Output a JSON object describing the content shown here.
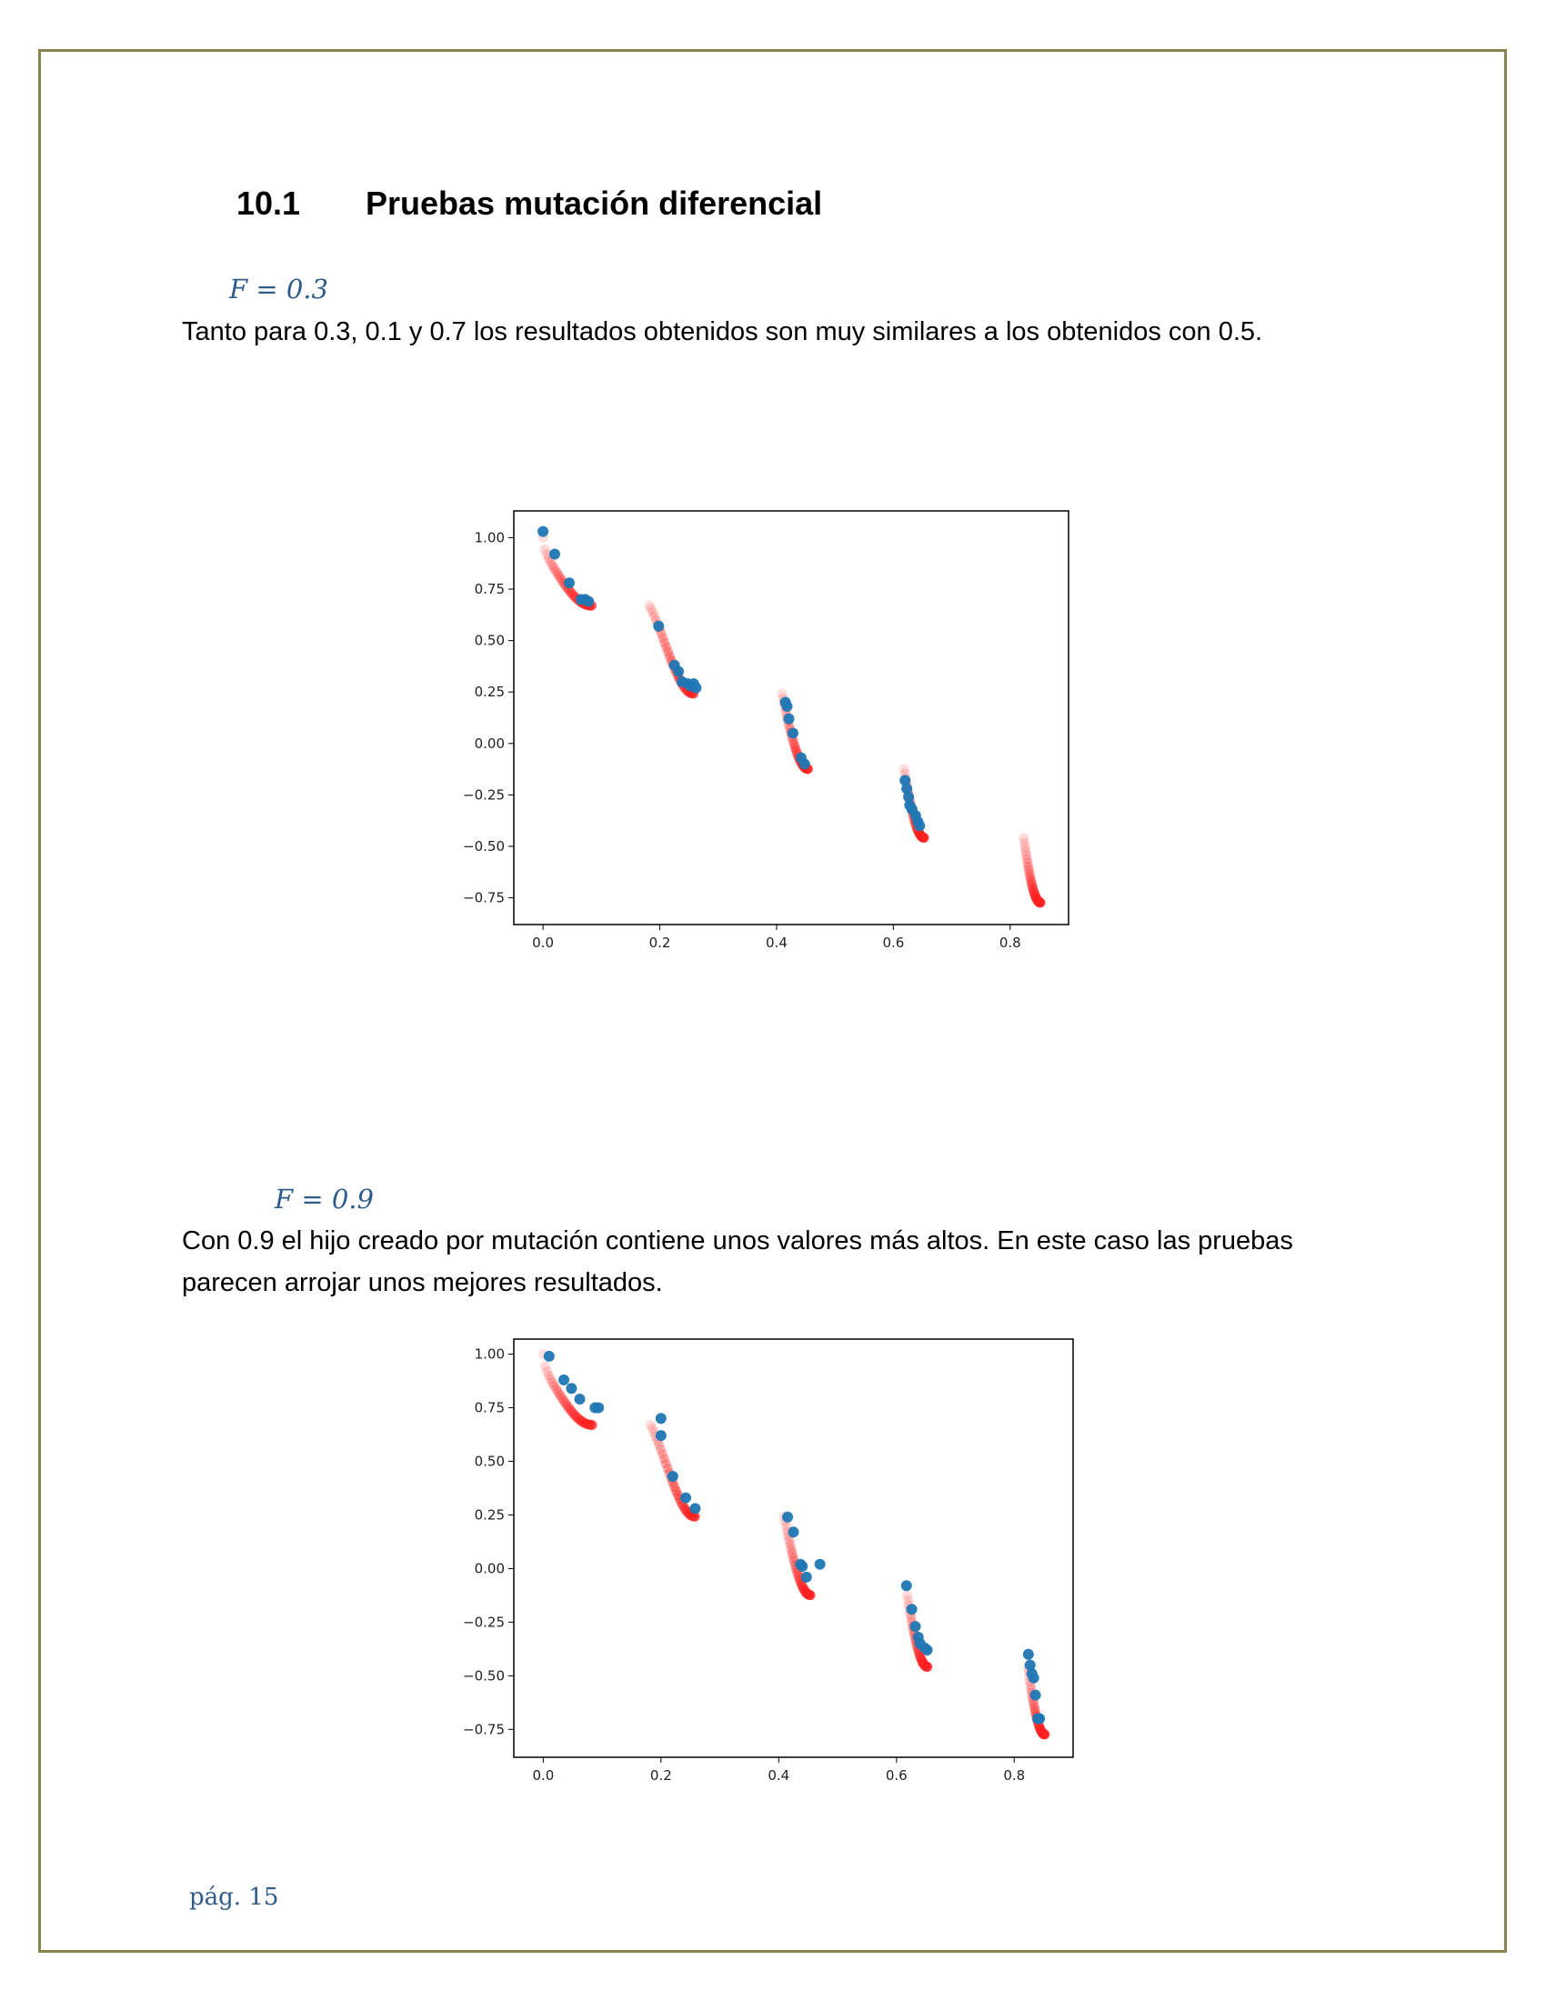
{
  "section": {
    "number": "10.1",
    "title": "Pruebas mutación diferencial"
  },
  "block1": {
    "subheading": "F = 0.3",
    "text": "Tanto para 0.3, 0.1 y 0.7 los resultados obtenidos son muy similares a los obtenidos con 0.5."
  },
  "block2": {
    "subheading": "F = 0.9",
    "line1": "Con 0.9 el hijo creado por mutación contiene unos valores más altos. En este caso las pruebas",
    "line2": "parecen arrojar unos mejores resultados."
  },
  "page_label": "pág. 15",
  "colors": {
    "frame": "#8a8350",
    "accent": "#2e5c8a",
    "front": "#ff2020",
    "solution": "#1f77b4"
  },
  "chart_data": [
    {
      "type": "scatter",
      "title": "",
      "xlabel": "",
      "ylabel": "",
      "xlim": [
        -0.05,
        0.9
      ],
      "ylim": [
        -0.88,
        1.13
      ],
      "xticks": [
        "0.0",
        "0.2",
        "0.4",
        "0.6",
        "0.8"
      ],
      "yticks": [
        "1.00",
        "0.75",
        "0.50",
        "0.25",
        "0.00",
        "−0.25",
        "−0.50",
        "−0.75"
      ],
      "series": [
        {
          "style": "front",
          "segments": [
            [
              0.0,
              0.083
            ],
            [
              0.1822,
              0.2577
            ],
            [
              0.4093,
              0.4538
            ],
            [
              0.6184,
              0.6525
            ],
            [
              0.8234,
              0.8518
            ]
          ]
        },
        {
          "style": "solution",
          "points": [
            [
              0.0,
              1.03
            ],
            [
              0.02,
              0.92
            ],
            [
              0.045,
              0.78
            ],
            [
              0.065,
              0.7
            ],
            [
              0.072,
              0.7
            ],
            [
              0.078,
              0.69
            ],
            [
              0.198,
              0.57
            ],
            [
              0.225,
              0.38
            ],
            [
              0.232,
              0.35
            ],
            [
              0.238,
              0.3
            ],
            [
              0.248,
              0.29
            ],
            [
              0.252,
              0.28
            ],
            [
              0.258,
              0.29
            ],
            [
              0.262,
              0.27
            ],
            [
              0.415,
              0.2
            ],
            [
              0.418,
              0.18
            ],
            [
              0.421,
              0.12
            ],
            [
              0.428,
              0.05
            ],
            [
              0.442,
              -0.07
            ],
            [
              0.448,
              -0.1
            ],
            [
              0.62,
              -0.18
            ],
            [
              0.623,
              -0.22
            ],
            [
              0.626,
              -0.26
            ],
            [
              0.628,
              -0.3
            ],
            [
              0.632,
              -0.32
            ],
            [
              0.638,
              -0.35
            ],
            [
              0.642,
              -0.38
            ],
            [
              0.645,
              -0.4
            ]
          ]
        }
      ]
    },
    {
      "type": "scatter",
      "title": "",
      "xlabel": "",
      "ylabel": "",
      "xlim": [
        -0.05,
        0.9
      ],
      "ylim": [
        -0.88,
        1.07
      ],
      "xticks": [
        "0.0",
        "0.2",
        "0.4",
        "0.6",
        "0.8"
      ],
      "yticks": [
        "1.00",
        "0.75",
        "0.50",
        "0.25",
        "0.00",
        "−0.25",
        "−0.50",
        "−0.75"
      ],
      "series": [
        {
          "style": "front",
          "segments": [
            [
              0.0,
              0.083
            ],
            [
              0.1822,
              0.2577
            ],
            [
              0.4093,
              0.4538
            ],
            [
              0.6184,
              0.6525
            ],
            [
              0.8234,
              0.8518
            ]
          ]
        },
        {
          "style": "solution",
          "points": [
            [
              0.01,
              0.99
            ],
            [
              0.035,
              0.88
            ],
            [
              0.048,
              0.84
            ],
            [
              0.062,
              0.79
            ],
            [
              0.088,
              0.75
            ],
            [
              0.094,
              0.75
            ],
            [
              0.2,
              0.7
            ],
            [
              0.2,
              0.62
            ],
            [
              0.22,
              0.43
            ],
            [
              0.242,
              0.33
            ],
            [
              0.258,
              0.28
            ],
            [
              0.415,
              0.24
            ],
            [
              0.425,
              0.17
            ],
            [
              0.437,
              0.02
            ],
            [
              0.44,
              0.01
            ],
            [
              0.447,
              -0.04
            ],
            [
              0.47,
              0.02
            ],
            [
              0.617,
              -0.08
            ],
            [
              0.626,
              -0.19
            ],
            [
              0.632,
              -0.27
            ],
            [
              0.637,
              -0.32
            ],
            [
              0.64,
              -0.35
            ],
            [
              0.648,
              -0.37
            ],
            [
              0.652,
              -0.38
            ],
            [
              0.824,
              -0.4
            ],
            [
              0.827,
              -0.45
            ],
            [
              0.83,
              -0.49
            ],
            [
              0.833,
              -0.51
            ],
            [
              0.836,
              -0.59
            ],
            [
              0.84,
              -0.7
            ],
            [
              0.843,
              -0.7
            ]
          ]
        }
      ]
    }
  ]
}
